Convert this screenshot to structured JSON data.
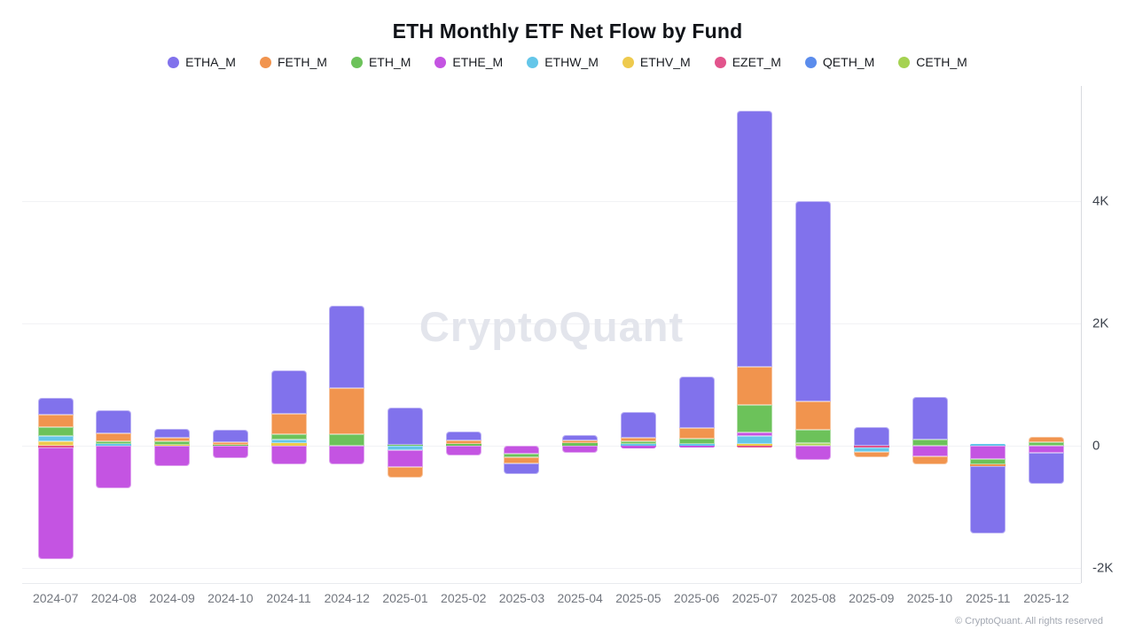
{
  "title": "ETH Monthly ETF Net Flow by Fund",
  "watermark": "CryptoQuant",
  "footer": {
    "copyright": "© CryptoQuant. All rights reserved"
  },
  "chart_data": {
    "type": "bar",
    "stacked": true,
    "grid": true,
    "legend_position": "top",
    "ylim": [
      -2250,
      5900
    ],
    "y_ticks": [
      {
        "label": "4K",
        "value": 4000
      },
      {
        "label": "2K",
        "value": 2000
      },
      {
        "label": "0",
        "value": 0
      },
      {
        "label": "-2K",
        "value": -2000
      }
    ],
    "categories": [
      "2024-07",
      "2024-08",
      "2024-09",
      "2024-10",
      "2024-11",
      "2024-12",
      "2025-01",
      "2025-02",
      "2025-03",
      "2025-04",
      "2025-05",
      "2025-06",
      "2025-07",
      "2025-08",
      "2025-09",
      "2025-10",
      "2025-11",
      "2025-12"
    ],
    "series": [
      {
        "name": "ETHA_M",
        "color": "#8172ec",
        "values": [
          282,
          363,
          150,
          195,
          713,
          1355,
          600,
          135,
          -170,
          95,
          420,
          840,
          4190,
          3270,
          300,
          695,
          -1090,
          -510
        ]
      },
      {
        "name": "FETH_M",
        "color": "#f1944e",
        "values": [
          203,
          141,
          62,
          48,
          328,
          750,
          -170,
          65,
          -105,
          48,
          58,
          175,
          630,
          470,
          -95,
          -125,
          -35,
          85
        ]
      },
      {
        "name": "ETH_M",
        "color": "#6cc25a",
        "values": [
          145,
          44,
          48,
          15,
          97,
          185,
          20,
          25,
          -60,
          38,
          54,
          75,
          450,
          215,
          0,
          95,
          -85,
          60
        ]
      },
      {
        "name": "ETHE_M",
        "color": "#c454e2",
        "values": [
          -1830,
          -695,
          -340,
          -200,
          -300,
          -305,
          -280,
          -160,
          -130,
          -120,
          -40,
          -35,
          60,
          -230,
          0,
          -180,
          -220,
          -120
        ]
      },
      {
        "name": "ETHW_M",
        "color": "#64c6e9",
        "values": [
          87,
          25,
          0,
          0,
          58,
          0,
          -70,
          0,
          0,
          0,
          25,
          35,
          120,
          0,
          -70,
          0,
          30,
          0
        ]
      },
      {
        "name": "ETHV_M",
        "color": "#eeca4d",
        "values": [
          70,
          0,
          20,
          0,
          39,
          0,
          0,
          0,
          0,
          0,
          0,
          0,
          35,
          0,
          0,
          0,
          0,
          0
        ]
      },
      {
        "name": "EZET_M",
        "color": "#e2548c",
        "values": [
          -25,
          0,
          0,
          0,
          0,
          0,
          0,
          0,
          0,
          0,
          0,
          0,
          -25,
          0,
          -30,
          0,
          0,
          0
        ]
      },
      {
        "name": "QETH_M",
        "color": "#5b8cec",
        "values": [
          0,
          0,
          0,
          0,
          0,
          0,
          0,
          0,
          0,
          0,
          0,
          0,
          0,
          0,
          0,
          0,
          0,
          0
        ]
      },
      {
        "name": "CETH_M",
        "color": "#a5d251",
        "values": [
          0,
          0,
          0,
          0,
          0,
          0,
          0,
          0,
          0,
          0,
          0,
          0,
          0,
          45,
          0,
          0,
          0,
          0
        ]
      }
    ]
  }
}
